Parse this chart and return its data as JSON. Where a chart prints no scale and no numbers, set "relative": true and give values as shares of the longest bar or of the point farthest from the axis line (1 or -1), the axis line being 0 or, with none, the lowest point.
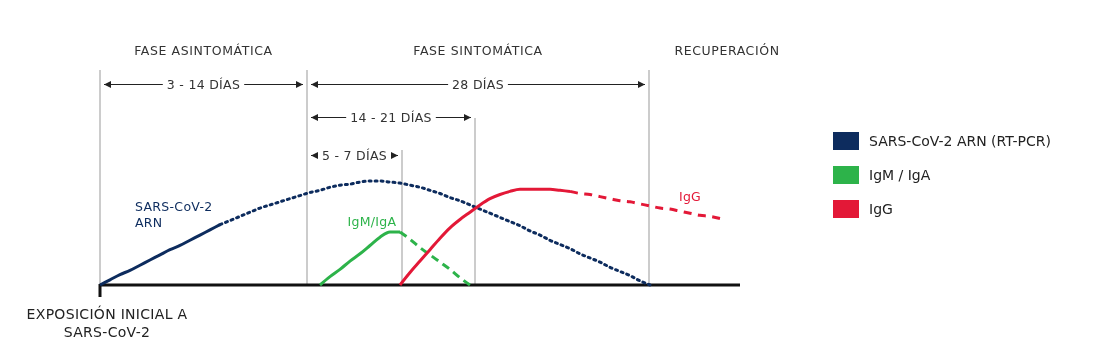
{
  "chart_data": {
    "type": "line",
    "relative": true,
    "legend": "right",
    "marker": "none",
    "categories": [
      null,
      null,
      null,
      null,
      null,
      null,
      null,
      null,
      null,
      null,
      null,
      null,
      null,
      null,
      null,
      null,
      null,
      null,
      null,
      null,
      null,
      null,
      null,
      null,
      null,
      null,
      null,
      null,
      null,
      null,
      null,
      null,
      null,
      null,
      null,
      null,
      null,
      null,
      null,
      null,
      null,
      null,
      null,
      null,
      null,
      null,
      null,
      null,
      null,
      null,
      null,
      null,
      null,
      null,
      null,
      null,
      null,
      null,
      null,
      null,
      null,
      null,
      null,
      null,
      null
    ],
    "series": [
      {
        "name": "SARS-CoV-2 ARN (RT-PCR)",
        "color": "#0d2c5e",
        "line_style": "solid",
        "values": [
          0,
          0.05,
          0.1,
          0.14,
          0.19,
          0.24,
          0.29,
          0.34,
          0.38,
          0.43,
          0.48,
          0.53,
          0.58,
          null,
          null,
          null,
          null,
          null,
          null,
          null,
          null,
          null,
          null,
          null,
          null,
          null,
          null,
          null,
          null,
          null,
          null,
          null,
          null,
          null,
          null,
          null,
          null,
          null,
          null,
          null,
          null,
          null,
          null,
          null,
          null,
          null,
          null,
          null,
          null,
          null,
          null,
          null,
          null,
          null,
          null,
          null,
          null,
          null,
          null,
          null,
          null,
          null,
          null,
          null,
          null
        ]
      },
      {
        "color": "#0d2c5e",
        "line_style": "dotted",
        "values": [
          null,
          null,
          null,
          null,
          null,
          null,
          null,
          null,
          null,
          null,
          null,
          null,
          0.58,
          0.62,
          0.66,
          0.7,
          0.74,
          0.77,
          0.8,
          0.83,
          0.86,
          0.89,
          0.91,
          0.94,
          0.96,
          0.97,
          0.99,
          1,
          1,
          0.99,
          0.98,
          0.96,
          0.94,
          0.91,
          0.88,
          0.84,
          0.81,
          0.77,
          0.73,
          0.69,
          0.65,
          0.61,
          0.57,
          0.52,
          0.48,
          0.43,
          0.39,
          0.35,
          0.3,
          0.26,
          0.22,
          0.17,
          0.13,
          0.09,
          0.04,
          0,
          null,
          null,
          null,
          null,
          null,
          null,
          null,
          null,
          null
        ]
      },
      {
        "name": "IgM / IgA",
        "color": "#2db34a",
        "line_style": "solid",
        "values": [
          null,
          null,
          null,
          null,
          null,
          null,
          null,
          null,
          null,
          null,
          null,
          null,
          null,
          null,
          null,
          null,
          null,
          null,
          null,
          null,
          null,
          null,
          0,
          0.08,
          0.15,
          0.23,
          0.3,
          0.38,
          0.46,
          0.51,
          0.51,
          null,
          null,
          null,
          null,
          null,
          null,
          null,
          null,
          null,
          null,
          null,
          null,
          null,
          null,
          null,
          null,
          null,
          null,
          null,
          null,
          null,
          null,
          null,
          null,
          null,
          null,
          null,
          null,
          null,
          null,
          null,
          null,
          null,
          null
        ]
      },
      {
        "color": "#2db34a",
        "line_style": "dashed",
        "values": [
          null,
          null,
          null,
          null,
          null,
          null,
          null,
          null,
          null,
          null,
          null,
          null,
          null,
          null,
          null,
          null,
          null,
          null,
          null,
          null,
          null,
          null,
          null,
          null,
          null,
          null,
          null,
          null,
          null,
          null,
          0.51,
          0.44,
          0.36,
          0.29,
          0.22,
          0.15,
          0.07,
          0,
          null,
          null,
          null,
          null,
          null,
          null,
          null,
          null,
          null,
          null,
          null,
          null,
          null,
          null,
          null,
          null,
          null,
          null,
          null,
          null,
          null,
          null,
          null,
          null,
          null,
          null,
          null
        ]
      },
      {
        "name": "IgG",
        "color": "#e31837",
        "line_style": "solid",
        "values": [
          null,
          null,
          null,
          null,
          null,
          null,
          null,
          null,
          null,
          null,
          null,
          null,
          null,
          null,
          null,
          null,
          null,
          null,
          null,
          null,
          null,
          null,
          null,
          null,
          null,
          null,
          null,
          null,
          null,
          null,
          0,
          0.12,
          0.23,
          0.34,
          0.45,
          0.55,
          0.63,
          0.7,
          0.77,
          0.83,
          0.87,
          0.9,
          0.92,
          0.92,
          0.92,
          0.92,
          0.91,
          0.9,
          null,
          null,
          null,
          null,
          null,
          null,
          null,
          null,
          null,
          null,
          null,
          null,
          null,
          null,
          null,
          null,
          null
        ]
      },
      {
        "color": "#e31837",
        "line_style": "dashed",
        "values": [
          null,
          null,
          null,
          null,
          null,
          null,
          null,
          null,
          null,
          null,
          null,
          null,
          null,
          null,
          null,
          null,
          null,
          null,
          null,
          null,
          null,
          null,
          null,
          null,
          null,
          null,
          null,
          null,
          null,
          null,
          null,
          null,
          null,
          null,
          null,
          null,
          null,
          null,
          null,
          null,
          null,
          null,
          null,
          null,
          null,
          null,
          null,
          0.9,
          0.88,
          0.87,
          0.85,
          0.83,
          0.81,
          0.8,
          0.78,
          0.76,
          0.74,
          0.73,
          0.71,
          0.69,
          0.67,
          0.66,
          0.64,
          null,
          null
        ]
      }
    ],
    "annotations": [
      "FASE ASINTOMÁTICA",
      "FASE  SINTOMÁTICA",
      "RECUPERACIÓN",
      "3 - 14 DÍAS",
      "28 DÍAS",
      "14 - 21 DÍAS",
      "5 - 7 DÍAS",
      "SARS-CoV-2\nARN",
      "IgM/IgA",
      "IgG",
      "EXPOSICIÓN INICIAL A\nSARS-CoV-2"
    ]
  }
}
